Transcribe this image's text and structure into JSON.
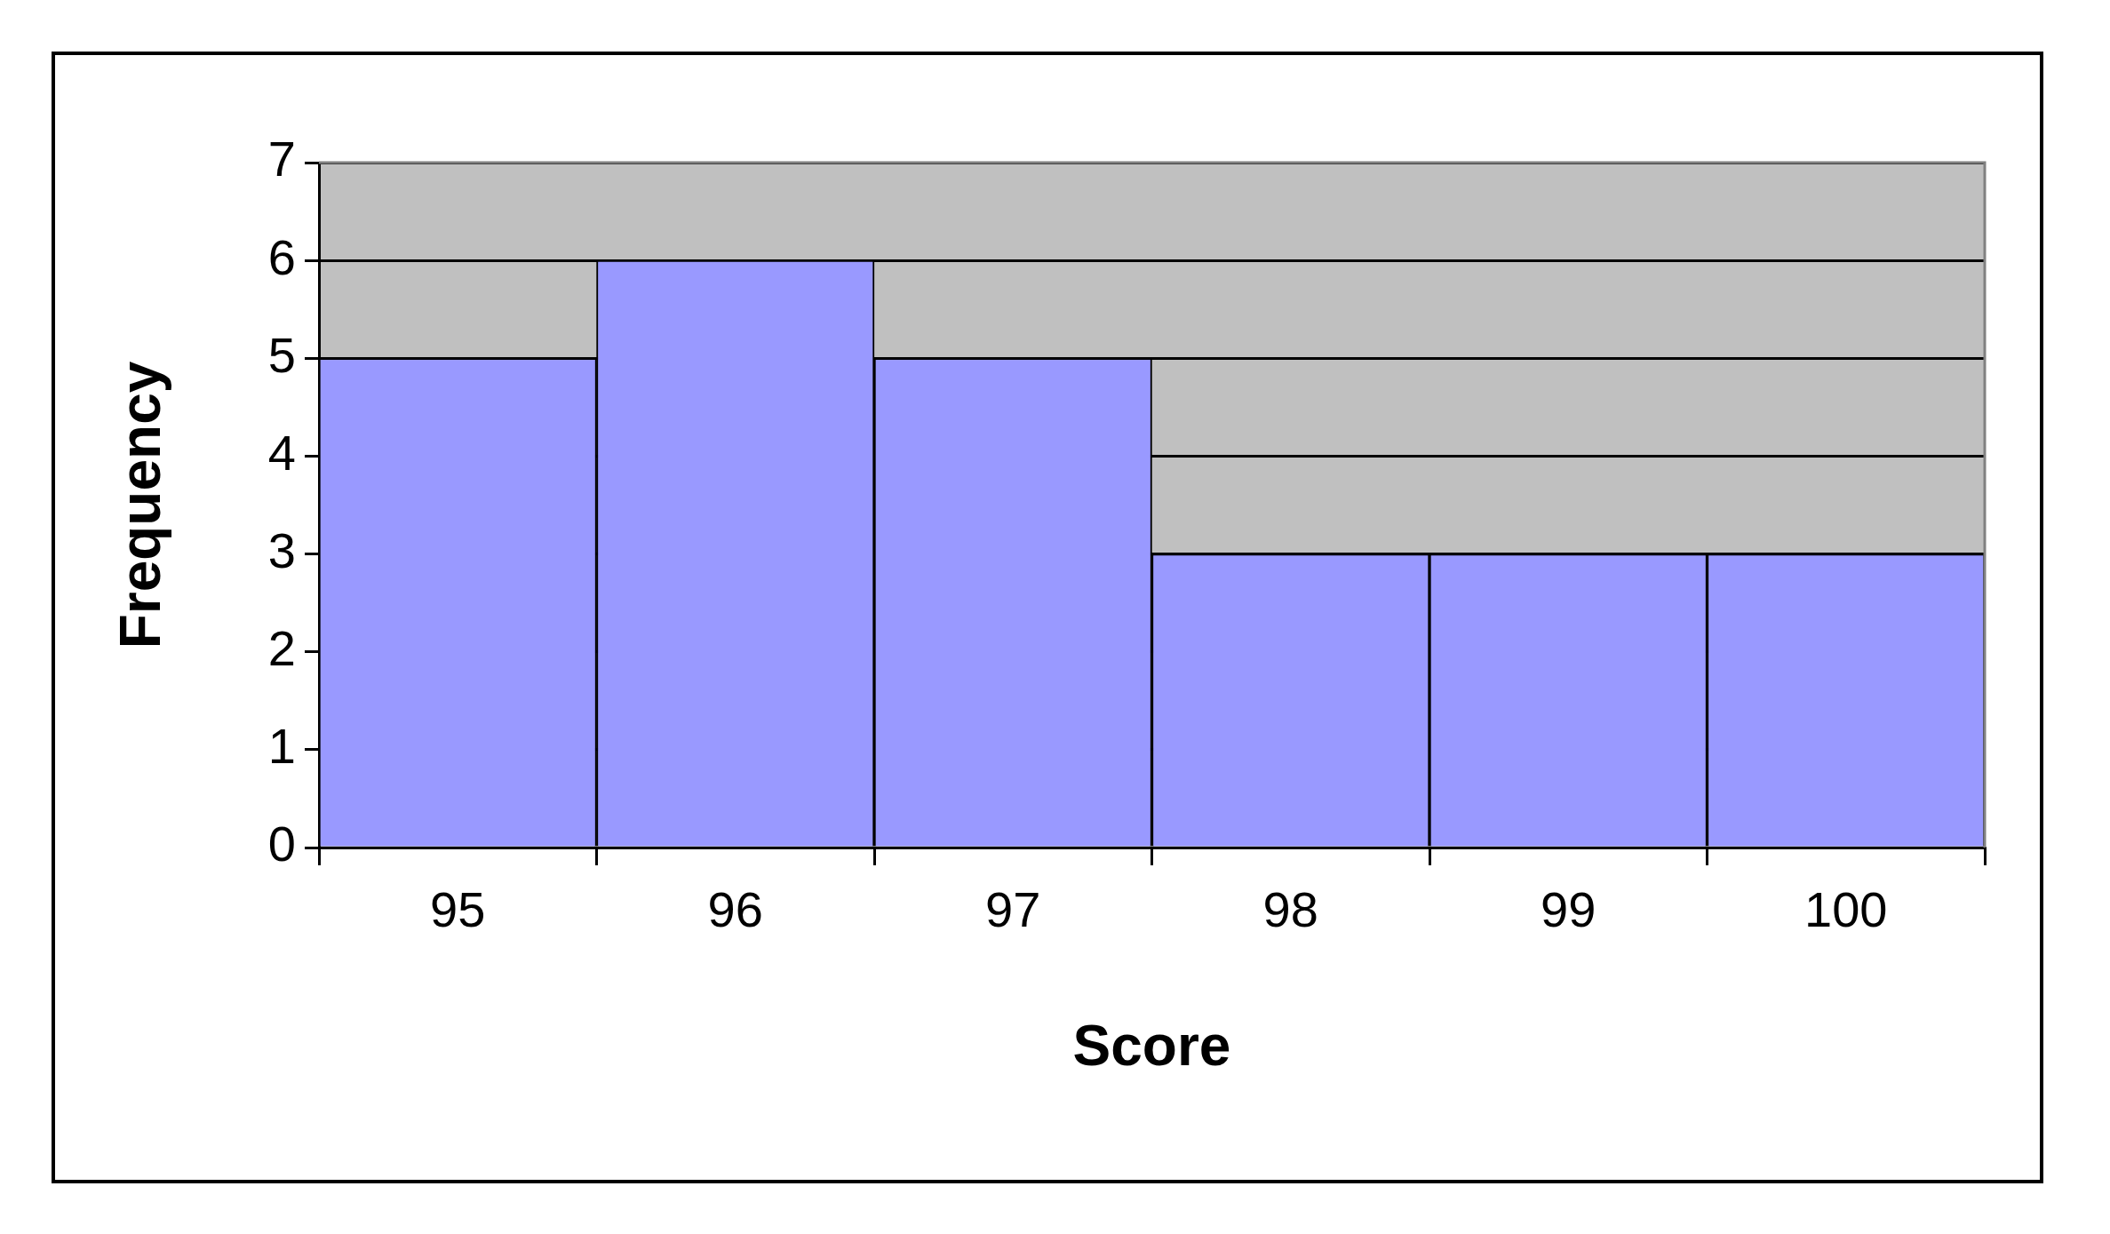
{
  "chart_data": {
    "type": "bar",
    "xlabel": "Score",
    "ylabel": "Frequency",
    "categories": [
      "95",
      "96",
      "97",
      "98",
      "99",
      "100"
    ],
    "values": [
      5,
      6,
      5,
      3,
      3,
      3
    ],
    "color": "#9999ff",
    "ylim": [
      0,
      7
    ],
    "yticks": [
      0,
      1,
      2,
      3,
      4,
      5,
      6,
      7
    ],
    "grid": "y",
    "legend": false
  }
}
